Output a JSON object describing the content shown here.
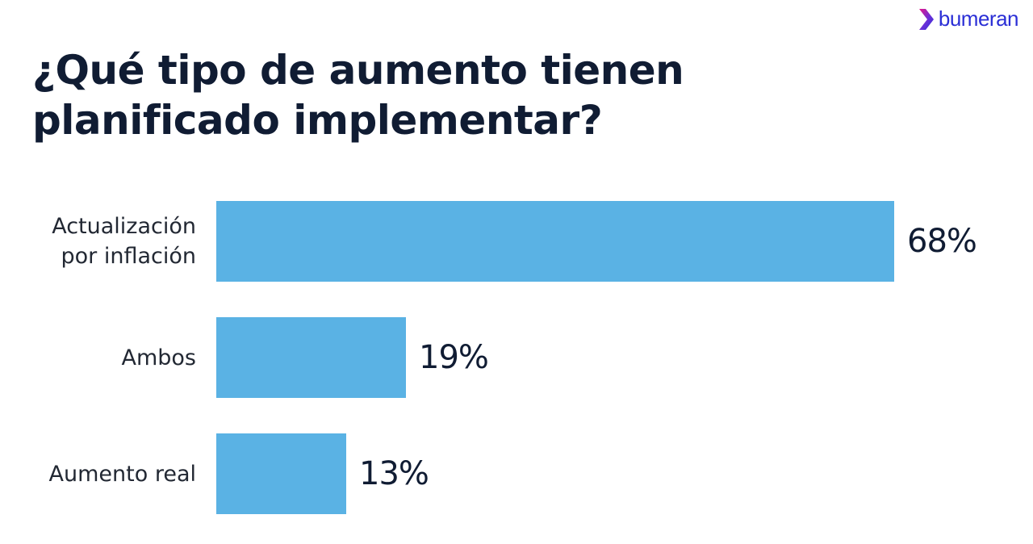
{
  "brand": {
    "name": "bumeran",
    "color": "#2b2fd6",
    "icon": "chevron-logo-icon"
  },
  "colors": {
    "bar": "#5ab2e4",
    "title": "#101c33",
    "label": "#222833"
  },
  "chart_data": {
    "type": "bar",
    "orientation": "horizontal",
    "title": "¿Qué tipo de aumento tienen planificado implementar?",
    "title_lines": [
      "¿Qué tipo de aumento tienen",
      "planificado implementar?"
    ],
    "categories": [
      "Actualización por inflación",
      "Ambos",
      "Aumento real"
    ],
    "category_lines": [
      [
        "Actualización",
        "por inflación"
      ],
      [
        "Ambos"
      ],
      [
        "Aumento real"
      ]
    ],
    "values": [
      68,
      19,
      13
    ],
    "value_labels": [
      "68%",
      "19%",
      "13%"
    ],
    "unit": "%",
    "xlim": [
      0,
      68
    ],
    "grid": false,
    "legend": "none"
  }
}
